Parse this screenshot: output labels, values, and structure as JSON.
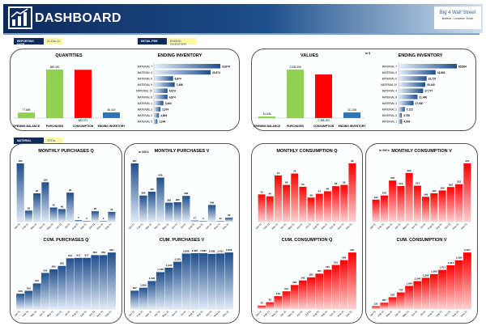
{
  "header": {
    "title": "DASHBOARD",
    "brand": "Big 4 Wall Street",
    "brand_tagline": "Believe, Conceive, Excel"
  },
  "filters": {
    "reporting_date_label": "REPORTING DATE",
    "reporting_date": "31-Dec-21",
    "detail_per_label": "DETAIL PER",
    "detail_per": "ENDING INVENTORY",
    "material_label": "MATERIAL",
    "material": "TOTAL"
  },
  "units": {
    "thousands": "in 000's",
    "in_k": "in $"
  },
  "colors": {
    "blue": "#1f5a9a",
    "green": "#92d050",
    "red": "#ff0000",
    "navy": "#0e2a5c"
  },
  "chart_data": [
    {
      "id": "quantities",
      "type": "bar",
      "title": "QUANTITIES",
      "categories": [
        "OPENING BALANCE",
        "PURCHASES",
        "CONSUMPTION",
        "ENDING INVENTORY"
      ],
      "values": [
        77889,
        686330,
        -683071,
        80419
      ],
      "labels": [
        "77,889",
        "686,330",
        "683,071",
        "80,419"
      ],
      "colors": [
        "#92d050",
        "#92d050",
        "#ff0000",
        "#2e75b6"
      ]
    },
    {
      "id": "values",
      "type": "bar",
      "title": "VALUES",
      "categories": [
        "OPENING BALANCE",
        "PURCHASES",
        "CONSUMPTION",
        "ENDING INVENTORY"
      ],
      "values": [
        81635,
        2635358,
        -2368183,
        311393
      ],
      "labels": [
        "81,635",
        "2,635,358",
        "2,368,183",
        "311,393"
      ],
      "colors": [
        "#92d050",
        "#92d050",
        "#ff0000",
        "#2e75b6"
      ]
    },
    {
      "id": "inv-q",
      "type": "bar",
      "orientation": "horizontal",
      "title": "ENDING INVENTORY",
      "categories": [
        "MATERIAL 7",
        "MATERIAL 4",
        "MATERIAL 6",
        "MATERIAL 9",
        "MATERIAL 10",
        "MATERIAL 8",
        "MATERIAL 1",
        "MATERIAL 3",
        "MATERIAL 2",
        "MATERIAL 5"
      ],
      "values": [
        23874,
        20374,
        6874,
        7466,
        4874,
        4874,
        3404,
        2374,
        1804,
        1244
      ],
      "labels": [
        "23,874",
        "20,374",
        "6,874",
        "7,466",
        "4,874",
        "4,874",
        "3,404",
        "2,374",
        "1,804",
        "1,244"
      ]
    },
    {
      "id": "inv-v",
      "type": "bar",
      "orientation": "horizontal",
      "title": "ENDING INVENTORY",
      "categories": [
        "MATERIAL 7",
        "MATERIAL 9",
        "MATERIAL 6",
        "MATERIAL 10",
        "MATERIAL 4",
        "MATERIAL 8",
        "MATERIAL 3",
        "MATERIAL 2",
        "MATERIAL 5",
        "MATERIAL 1"
      ],
      "values": [
        65864,
        41862,
        31737,
        30140,
        27777,
        21400,
        17000,
        7122,
        3750,
        4000
      ],
      "labels": [
        "65,864",
        "41,862",
        "31,737",
        "30,140",
        "27,777",
        "21,400",
        "17,000",
        "7,122",
        "3,750",
        "4,000"
      ]
    },
    {
      "id": "mpq",
      "type": "bar",
      "title": "MONTHLY PURCHASES Q",
      "categories": [
        "Jan-21",
        "Feb-21",
        "Mar-21",
        "Apr-21",
        "May-21",
        "Jun-21",
        "Jul-21",
        "Aug-21",
        "Sep-21",
        "Oct-21",
        "Nov-21",
        "Dec-21"
      ],
      "values": [
        185,
        35,
        90,
        125,
        45,
        40,
        92,
        5,
        0,
        33,
        0,
        31
      ]
    },
    {
      "id": "mpv",
      "type": "bar",
      "title": "MONTHLY PURCHASES V",
      "categories": [
        "Jan-21",
        "Feb-21",
        "Mar-21",
        "Apr-21",
        "May-21",
        "Jun-21",
        "Jul-21",
        "Aug-21",
        "Sep-21",
        "Oct-21",
        "Nov-21",
        "Dec-21"
      ],
      "values": [
        867,
        389,
        446,
        656,
        282,
        289,
        383,
        17,
        0,
        248,
        11,
        59
      ]
    },
    {
      "id": "mcq",
      "type": "bar",
      "title": "MONTHLY CONSUMPTION Q",
      "categories": [
        "Jan-21",
        "Feb-21",
        "Mar-21",
        "Apr-21",
        "May-21",
        "Jun-21",
        "Jul-21",
        "Aug-21",
        "Sep-21",
        "Oct-21",
        "Nov-21",
        "Dec-21"
      ],
      "values": [
        43,
        40,
        73,
        58,
        76,
        55,
        38,
        44,
        48,
        56,
        58,
        92
      ]
    },
    {
      "id": "mcv",
      "type": "bar",
      "title": "MONTHLY CONSUMPTION V",
      "categories": [
        "Jan-21",
        "Feb-21",
        "Mar-21",
        "Apr-21",
        "May-21",
        "Jun-21",
        "Jul-21",
        "Aug-21",
        "Sep-21",
        "Oct-21",
        "Nov-21",
        "Dec-21"
      ],
      "values": [
        131,
        156,
        245,
        212,
        290,
        214,
        148,
        169,
        186,
        206,
        223,
        347
      ]
    },
    {
      "id": "cpq",
      "type": "bar",
      "title": "CUM. PURCHASES Q",
      "categories": [
        "Jan-21",
        "Feb-21",
        "Mar-21",
        "Apr-21",
        "May-21",
        "Jun-21",
        "Jul-21",
        "Aug-21",
        "Sep-21",
        "Oct-21",
        "Nov-21",
        "Dec-21"
      ],
      "values": [
        185,
        220,
        310,
        435,
        480,
        520,
        612,
        617,
        617,
        650,
        650,
        681
      ]
    },
    {
      "id": "cpv",
      "type": "bar",
      "title": "CUM. PURCHASES V",
      "categories": [
        "Jan-21",
        "Feb-21",
        "Mar-21",
        "Apr-21",
        "May-21",
        "Jun-21",
        "Jul-21",
        "Aug-21",
        "Sep-21",
        "Oct-21",
        "Nov-21",
        "Dec-21"
      ],
      "values": [
        867,
        1006,
        1323,
        1738,
        1943,
        2225,
        2608,
        2625,
        2625,
        2598,
        2611,
        2659
      ]
    },
    {
      "id": "ccq",
      "type": "bar",
      "title": "CUM. CONSUMPTION Q",
      "categories": [
        "Jan-21",
        "Feb-21",
        "Mar-21",
        "Apr-21",
        "May-21",
        "Jun-21",
        "Jul-21",
        "Aug-21",
        "Sep-21",
        "Oct-21",
        "Nov-21",
        "Dec-21"
      ],
      "values": [
        43,
        83,
        156,
        214,
        290,
        345,
        383,
        427,
        475,
        531,
        589,
        681
      ]
    },
    {
      "id": "ccv",
      "type": "bar",
      "title": "CUM. CONSUMPTION V",
      "categories": [
        "Jan-21",
        "Feb-21",
        "Mar-21",
        "Apr-21",
        "May-21",
        "Jun-21",
        "Jul-21",
        "Aug-21",
        "Sep-21",
        "Oct-21",
        "Nov-21",
        "Dec-21"
      ],
      "values": [
        131,
        287,
        532,
        744,
        1034,
        1248,
        1396,
        1565,
        1751,
        1957,
        2180,
        2527
      ]
    }
  ]
}
